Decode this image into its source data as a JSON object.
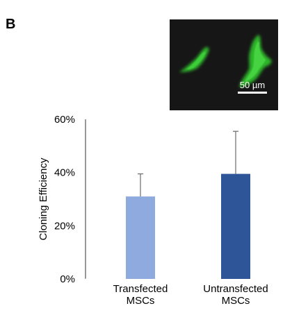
{
  "panel_label": "B",
  "micrograph": {
    "scale_bar_label": "50 µm",
    "fluorescence_color": "#2fb52a"
  },
  "chart_data": {
    "type": "bar",
    "categories": [
      [
        "Transfected",
        "MSCs"
      ],
      [
        "Untransfected",
        "MSCs"
      ]
    ],
    "values": [
      31,
      39.5
    ],
    "error_upper": [
      39.5,
      55.5
    ],
    "ylabel": "Cloning Efficiency",
    "ylim": [
      0,
      60
    ],
    "yticks": [
      0,
      20,
      40,
      60
    ],
    "ytick_labels": [
      "0%",
      "20%",
      "40%",
      "60%"
    ],
    "bar_colors": [
      "#8eaadf",
      "#2e5597"
    ],
    "grid": false,
    "legend": false
  }
}
